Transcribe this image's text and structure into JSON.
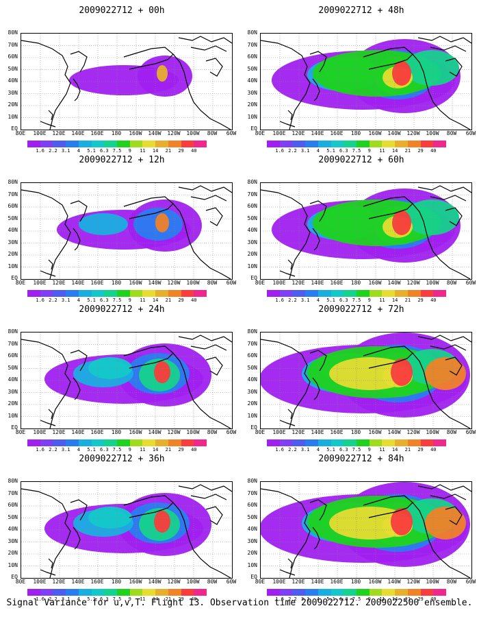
{
  "figure": {
    "caption": "Signal Variance for u,v,T. Flight 13. Observation time 2009022712. 2009022500 ensemble."
  },
  "map": {
    "lat_labels": [
      "80N",
      "70N",
      "60N",
      "50N",
      "40N",
      "30N",
      "20N",
      "10N",
      "EQ"
    ],
    "lon_labels": [
      "80E",
      "100E",
      "120E",
      "140E",
      "160E",
      "180",
      "160W",
      "140W",
      "120W",
      "100W",
      "80W",
      "60W"
    ]
  },
  "colorbar": {
    "levels": [
      "1.6",
      "2.2",
      "3.1",
      "4",
      "5.1",
      "6.3",
      "7.5",
      "9",
      "11",
      "14",
      "21",
      "29",
      "40"
    ],
    "colors": [
      "#a020f0",
      "#7f3ff5",
      "#4f5cf0",
      "#2a7df0",
      "#19aee0",
      "#14c8c8",
      "#15d28c",
      "#1ed21e",
      "#a0dc1e",
      "#e6dc32",
      "#e6af2d",
      "#f08228",
      "#fa3c3c",
      "#f0288c"
    ]
  },
  "panels": [
    {
      "id": "p00",
      "title": "2009022712 + 00h",
      "intensity": 0
    },
    {
      "id": "p48",
      "title": "2009022712 + 48h",
      "intensity": 3
    },
    {
      "id": "p12",
      "title": "2009022712 + 12h",
      "intensity": 1
    },
    {
      "id": "p60",
      "title": "2009022712 + 60h",
      "intensity": 3
    },
    {
      "id": "p24",
      "title": "2009022712 + 24h",
      "intensity": 2
    },
    {
      "id": "p72",
      "title": "2009022712 + 72h",
      "intensity": 4
    },
    {
      "id": "p36",
      "title": "2009022712 + 36h",
      "intensity": 2
    },
    {
      "id": "p84",
      "title": "2009022712 + 84h",
      "intensity": 4
    }
  ]
}
